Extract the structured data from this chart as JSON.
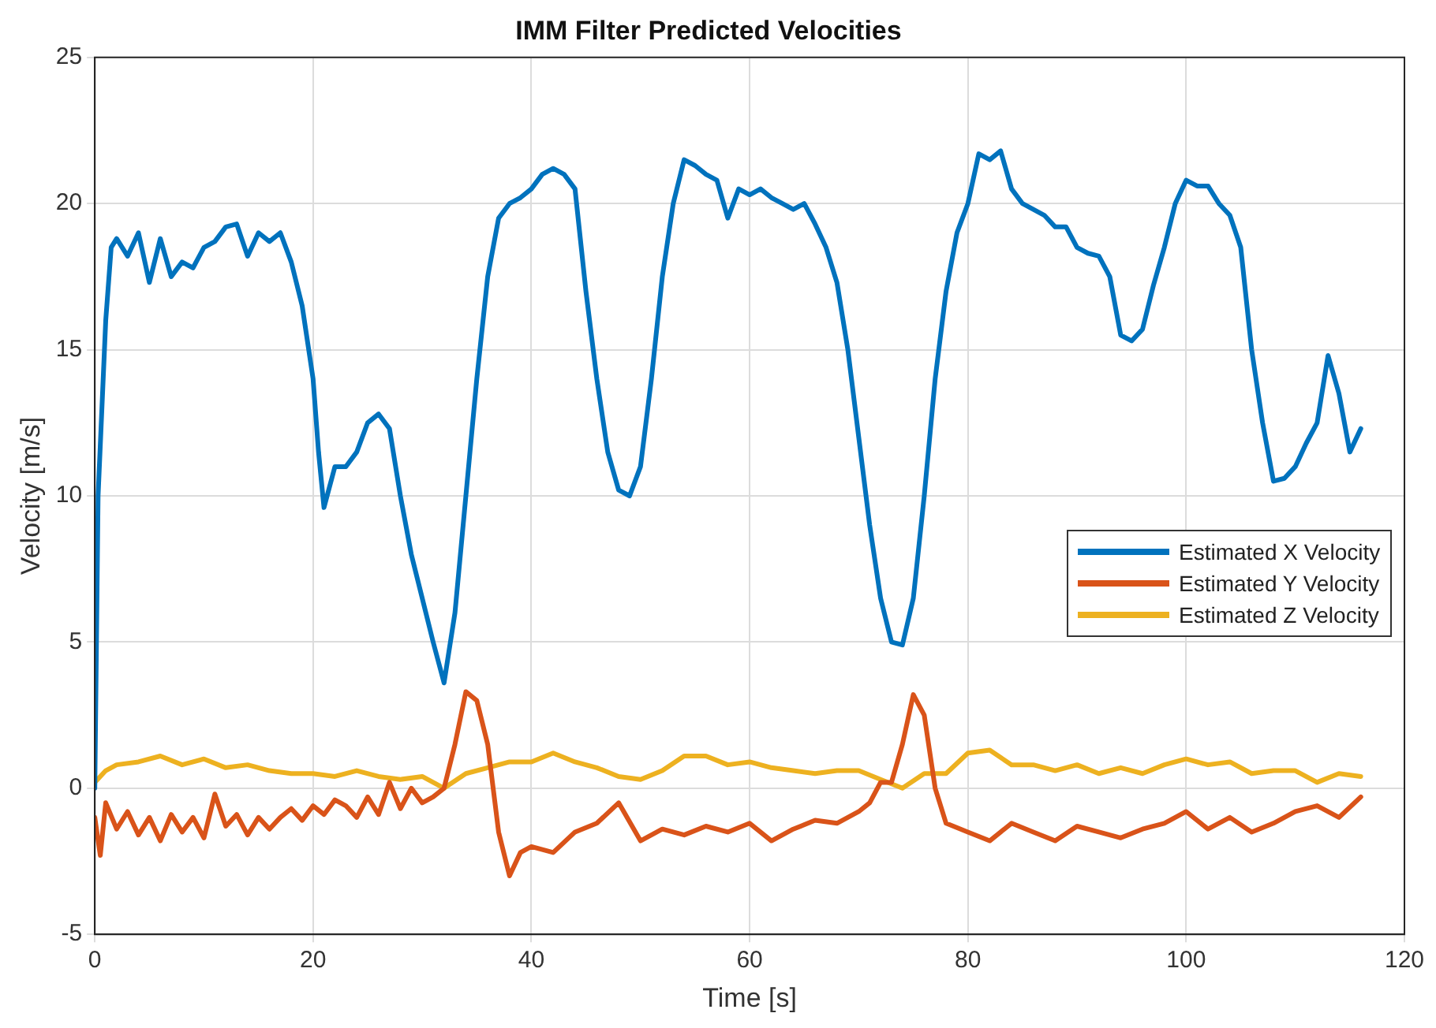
{
  "chart_data": {
    "type": "line",
    "title": "IMM Filter Predicted Velocities",
    "xlabel": "Time [s]",
    "ylabel": "Velocity [m/s]",
    "xlim": [
      0,
      120
    ],
    "xticks": [
      0,
      20,
      40,
      60,
      80,
      100,
      120
    ],
    "ylim": [
      -5,
      25
    ],
    "yticks": [
      -5,
      0,
      5,
      10,
      15,
      20,
      25
    ],
    "grid": true,
    "legend": "right",
    "line_style": "solid",
    "marker": "none",
    "series": [
      {
        "name": "Estimated X Velocity",
        "color": "#0072bd",
        "x": [
          0,
          0.3,
          1,
          1.5,
          2,
          3,
          4,
          5,
          6,
          7,
          8,
          9,
          10,
          11,
          12,
          13,
          14,
          15,
          16,
          17,
          18,
          19,
          20,
          20.5,
          21,
          22,
          23,
          24,
          25,
          26,
          27,
          28,
          29,
          30,
          31,
          32,
          33,
          34,
          35,
          36,
          37,
          38,
          39,
          40,
          41,
          42,
          43,
          44,
          45,
          46,
          47,
          48,
          49,
          50,
          51,
          52,
          53,
          54,
          55,
          56,
          57,
          58,
          59,
          60,
          61,
          62,
          63,
          64,
          65,
          66,
          67,
          68,
          69,
          70,
          71,
          72,
          73,
          74,
          75,
          76,
          77,
          78,
          79,
          80,
          81,
          82,
          83,
          84,
          85,
          86,
          87,
          88,
          89,
          90,
          91,
          92,
          93,
          94,
          95,
          96,
          97,
          98,
          99,
          100,
          101,
          102,
          103,
          104,
          105,
          106,
          107,
          108,
          109,
          110,
          111,
          112,
          113,
          114,
          115,
          116
        ],
        "values": [
          0,
          10,
          16,
          18.5,
          18.8,
          18.2,
          19,
          17.3,
          18.8,
          17.5,
          18,
          17.8,
          18.5,
          18.7,
          19.2,
          19.3,
          18.2,
          19,
          18.7,
          19,
          18,
          16.5,
          14,
          11.5,
          9.6,
          11,
          11,
          11.5,
          12.5,
          12.8,
          12.3,
          10,
          8,
          6.5,
          5,
          3.6,
          6,
          10,
          14,
          17.5,
          19.5,
          20,
          20.2,
          20.5,
          21,
          21.2,
          21,
          20.5,
          17,
          14,
          11.5,
          10.2,
          10,
          11,
          14,
          17.5,
          20,
          21.5,
          21.3,
          21,
          20.8,
          19.5,
          20.5,
          20.3,
          20.5,
          20.2,
          20,
          19.8,
          20,
          19.3,
          18.5,
          17.3,
          15,
          12,
          9,
          6.5,
          5,
          4.9,
          6.5,
          10,
          14,
          17,
          19,
          20,
          21.7,
          21.5,
          21.8,
          20.5,
          20,
          19.8,
          19.6,
          19.2,
          19.2,
          18.5,
          18.3,
          18.2,
          17.5,
          15.5,
          15.3,
          15.7,
          17.2,
          18.5,
          20,
          20.8,
          20.6,
          20.6,
          20,
          19.6,
          18.5,
          15,
          12.5,
          10.5,
          10.6,
          11,
          11.8,
          12.5,
          14.8,
          13.5,
          11.5,
          12.3
        ]
      },
      {
        "name": "Estimated Y Velocity",
        "color": "#d95319",
        "x": [
          0,
          0.5,
          1,
          2,
          3,
          4,
          5,
          6,
          7,
          8,
          9,
          10,
          11,
          12,
          13,
          14,
          15,
          16,
          17,
          18,
          19,
          20,
          21,
          22,
          23,
          24,
          25,
          26,
          27,
          28,
          29,
          30,
          31,
          32,
          33,
          34,
          35,
          36,
          37,
          38,
          39,
          40,
          42,
          44,
          46,
          48,
          50,
          52,
          54,
          56,
          58,
          60,
          62,
          64,
          66,
          68,
          70,
          71,
          72,
          73,
          74,
          75,
          76,
          77,
          78,
          80,
          82,
          84,
          86,
          88,
          90,
          92,
          94,
          96,
          98,
          100,
          102,
          104,
          106,
          108,
          110,
          112,
          114,
          116
        ],
        "values": [
          -1,
          -2.3,
          -0.5,
          -1.4,
          -0.8,
          -1.6,
          -1,
          -1.8,
          -0.9,
          -1.5,
          -1,
          -1.7,
          -0.2,
          -1.3,
          -0.9,
          -1.6,
          -1,
          -1.4,
          -1,
          -0.7,
          -1.1,
          -0.6,
          -0.9,
          -0.4,
          -0.6,
          -1,
          -0.3,
          -0.9,
          0.2,
          -0.7,
          0,
          -0.5,
          -0.3,
          0,
          1.5,
          3.3,
          3,
          1.5,
          -1.5,
          -3,
          -2.2,
          -2,
          -2.2,
          -1.5,
          -1.2,
          -0.5,
          -1.8,
          -1.4,
          -1.6,
          -1.3,
          -1.5,
          -1.2,
          -1.8,
          -1.4,
          -1.1,
          -1.2,
          -0.8,
          -0.5,
          0.2,
          0.2,
          1.5,
          3.2,
          2.5,
          0,
          -1.2,
          -1.5,
          -1.8,
          -1.2,
          -1.5,
          -1.8,
          -1.3,
          -1.5,
          -1.7,
          -1.4,
          -1.2,
          -0.8,
          -1.4,
          -1,
          -1.5,
          -1.2,
          -0.8,
          -0.6,
          -1,
          -0.3
        ]
      },
      {
        "name": "Estimated Z Velocity",
        "color": "#edb120",
        "x": [
          0,
          1,
          2,
          4,
          6,
          8,
          10,
          12,
          14,
          16,
          18,
          20,
          22,
          24,
          26,
          28,
          30,
          32,
          34,
          36,
          38,
          40,
          42,
          44,
          46,
          48,
          50,
          52,
          54,
          56,
          58,
          60,
          62,
          64,
          66,
          68,
          70,
          72,
          74,
          76,
          78,
          80,
          82,
          84,
          86,
          88,
          90,
          92,
          94,
          96,
          98,
          100,
          102,
          104,
          106,
          108,
          110,
          112,
          114,
          116
        ],
        "values": [
          0.2,
          0.6,
          0.8,
          0.9,
          1.1,
          0.8,
          1,
          0.7,
          0.8,
          0.6,
          0.5,
          0.5,
          0.4,
          0.6,
          0.4,
          0.3,
          0.4,
          0,
          0.5,
          0.7,
          0.9,
          0.9,
          1.2,
          0.9,
          0.7,
          0.4,
          0.3,
          0.6,
          1.1,
          1.1,
          0.8,
          0.9,
          0.7,
          0.6,
          0.5,
          0.6,
          0.6,
          0.3,
          0,
          0.5,
          0.5,
          1.2,
          1.3,
          0.8,
          0.8,
          0.6,
          0.8,
          0.5,
          0.7,
          0.5,
          0.8,
          1,
          0.8,
          0.9,
          0.5,
          0.6,
          0.6,
          0.2,
          0.5,
          0.4
        ]
      }
    ]
  }
}
